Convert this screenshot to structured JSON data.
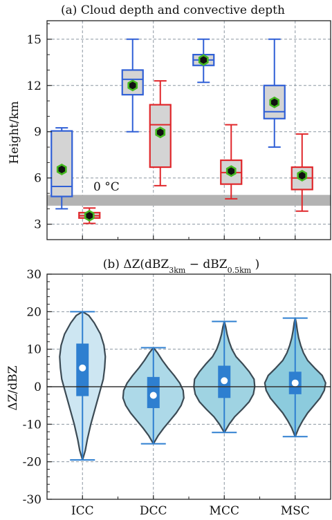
{
  "chart_data": [
    {
      "type": "box",
      "title": "(a) Cloud depth and convective depth",
      "ylabel": "Height/km",
      "ylim": [
        2,
        16.2
      ],
      "yticks": [
        3,
        6,
        9,
        12,
        15
      ],
      "categories": [
        "ICC",
        "DCC",
        "MCC",
        "MSC"
      ],
      "grid": true,
      "annotation": {
        "text": "0 °C",
        "band": [
          4.2,
          4.9
        ]
      },
      "colors": {
        "cloud_depth": "#2f5fd6",
        "convective_depth": "#e0262a",
        "box_fill": "#d4d4d4",
        "mean_marker": "#44b820",
        "band": "#b3b3b3"
      },
      "series": [
        {
          "key": "cloud_depth",
          "values": [
            {
              "min": 4.0,
              "q1": 4.8,
              "median": 5.45,
              "q3": 9.05,
              "max": 9.25,
              "mean": 6.55
            },
            {
              "min": 9.0,
              "q1": 11.4,
              "median": 12.4,
              "q3": 13.0,
              "max": 15.0,
              "mean": 12.0
            },
            {
              "min": 12.2,
              "q1": 13.3,
              "median": 13.65,
              "q3": 14.0,
              "max": 15.0,
              "mean": 13.65
            },
            {
              "min": 8.0,
              "q1": 9.85,
              "median": 10.3,
              "q3": 12.0,
              "max": 15.0,
              "mean": 10.9
            }
          ]
        },
        {
          "key": "convective_depth",
          "values": [
            {
              "min": 3.05,
              "q1": 3.4,
              "median": 3.55,
              "q3": 3.75,
              "max": 4.05,
              "mean": 3.55
            },
            {
              "min": 5.5,
              "q1": 6.7,
              "median": 9.45,
              "q3": 10.75,
              "max": 12.3,
              "mean": 8.95
            },
            {
              "min": 4.65,
              "q1": 5.6,
              "median": 6.35,
              "q3": 7.15,
              "max": 9.45,
              "mean": 6.45
            },
            {
              "min": 3.85,
              "q1": 5.25,
              "median": 6.0,
              "q3": 6.7,
              "max": 8.85,
              "mean": 6.15
            }
          ]
        }
      ]
    },
    {
      "type": "violin",
      "title_main": "(b) ΔZ(dBZ",
      "title_sub1": "3km",
      "title_mid": " − dBZ",
      "title_sub2": "0.5km",
      "title_end": " )",
      "ylabel": "ΔZ/dBZ",
      "ylim": [
        -30,
        30
      ],
      "yticks": [
        -30,
        -20,
        -10,
        0,
        10,
        20,
        30
      ],
      "categories": [
        "ICC",
        "DCC",
        "MCC",
        "MSC"
      ],
      "grid": true,
      "colors": [
        "#cde6f2",
        "#add9e8",
        "#9fd3e2",
        "#8ccbdd"
      ],
      "series": [
        {
          "category": "ICC",
          "min": -19.5,
          "max": 20.0,
          "q1": -2.5,
          "q3": 11.5,
          "median": 5.0
        },
        {
          "category": "DCC",
          "min": -15.2,
          "max": 10.4,
          "q1": -5.7,
          "q3": 2.6,
          "median": -2.3
        },
        {
          "category": "MCC",
          "min": -12.2,
          "max": 17.4,
          "q1": -3.0,
          "q3": 5.6,
          "median": 1.6
        },
        {
          "category": "MSC",
          "min": -13.3,
          "max": 18.3,
          "q1": -2.0,
          "q3": 4.0,
          "median": 1.0
        }
      ]
    }
  ]
}
